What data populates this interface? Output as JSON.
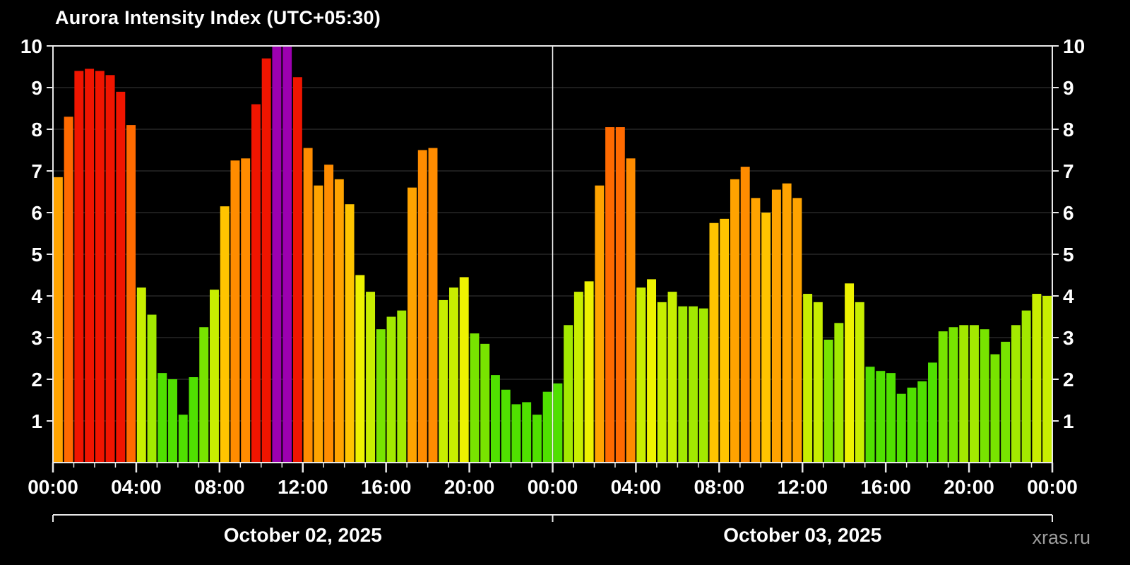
{
  "title": "Aurora Intensity Index (UTC+05:30)",
  "watermark": "xras.ru",
  "chart_data": {
    "type": "bar",
    "title": "Aurora Intensity Index (UTC+05:30)",
    "xlabel": "",
    "ylabel": "",
    "ylim": [
      0,
      10
    ],
    "y_ticks": [
      1,
      2,
      3,
      4,
      5,
      6,
      7,
      8,
      9,
      10
    ],
    "x_tick_labels": [
      "00:00",
      "04:00",
      "08:00",
      "12:00",
      "16:00",
      "20:00",
      "00:00",
      "04:00",
      "08:00",
      "12:00",
      "16:00",
      "20:00",
      "00:00"
    ],
    "interval_minutes": 30,
    "grid": true,
    "legend": "none",
    "background": "#000000",
    "axis_color": "#e8e8e8",
    "grid_color": "#3a3a3a",
    "divider_color": "#ffffff",
    "color_scale": [
      {
        "min": 9.9,
        "color": "#9c00b0"
      },
      {
        "min": 8.5,
        "color": "#f01500"
      },
      {
        "min": 7.8,
        "color": "#ff6a00"
      },
      {
        "min": 6.9,
        "color": "#ff8c00"
      },
      {
        "min": 6.3,
        "color": "#ffa300"
      },
      {
        "min": 5.6,
        "color": "#ffc400"
      },
      {
        "min": 4.9,
        "color": "#ffe000"
      },
      {
        "min": 4.3,
        "color": "#eef200"
      },
      {
        "min": 3.8,
        "color": "#c8ee00"
      },
      {
        "min": 3.3,
        "color": "#a3e900"
      },
      {
        "min": 2.6,
        "color": "#78e400"
      },
      {
        "min": 0,
        "color": "#50e000"
      }
    ],
    "days": [
      {
        "label": "October 02, 2025",
        "values": [
          6.85,
          8.3,
          9.4,
          9.45,
          9.4,
          9.3,
          8.9,
          8.1,
          4.2,
          3.55,
          2.15,
          2.0,
          1.15,
          2.05,
          3.25,
          4.15,
          6.15,
          7.25,
          7.3,
          8.6,
          9.7,
          10,
          10,
          9.25,
          7.55,
          6.65,
          7.15,
          6.8,
          6.2,
          4.5,
          4.1,
          3.2,
          3.5,
          3.65,
          6.6,
          7.5,
          7.55,
          3.9,
          4.2,
          4.45,
          3.1,
          2.85,
          2.1,
          1.75,
          1.4,
          1.45,
          1.15,
          1.7
        ]
      },
      {
        "label": "October 03, 2025",
        "values": [
          1.9,
          3.3,
          4.1,
          4.35,
          6.65,
          8.05,
          8.05,
          7.3,
          4.2,
          4.4,
          3.85,
          4.1,
          3.75,
          3.75,
          3.7,
          5.75,
          5.85,
          6.8,
          7.1,
          6.35,
          6.0,
          6.55,
          6.7,
          6.35,
          4.05,
          3.85,
          2.95,
          3.35,
          4.3,
          3.85,
          2.3,
          2.2,
          2.15,
          1.65,
          1.8,
          1.95,
          2.4,
          3.15,
          3.25,
          3.3,
          3.3,
          3.2,
          2.6,
          2.9,
          3.3,
          3.65,
          4.05,
          4.0
        ]
      }
    ]
  }
}
